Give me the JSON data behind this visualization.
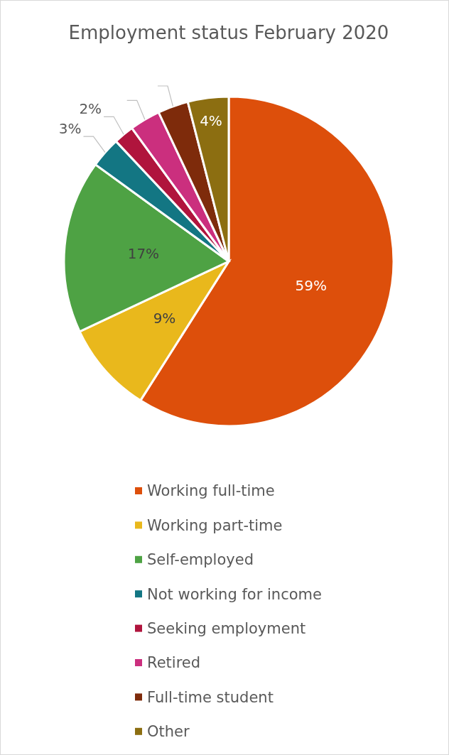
{
  "chart_data": {
    "type": "pie",
    "title": "Employment status February 2020",
    "categories": [
      "Working full-time",
      "Working part-time",
      "Self-employed",
      "Not working for income",
      "Seeking employment",
      "Retired",
      "Full-time student",
      "Other"
    ],
    "values": [
      59,
      9,
      17,
      3,
      2,
      3,
      3,
      4
    ],
    "colors": [
      "#dd4f0b",
      "#e9b81c",
      "#4ea244",
      "#137683",
      "#b0143d",
      "#cb2f7e",
      "#7e2b0b",
      "#8c6e11"
    ],
    "value_labels": [
      "59%",
      "9%",
      "17%",
      "3%",
      "2%",
      null,
      null,
      "4%"
    ],
    "legend": "bottom"
  }
}
